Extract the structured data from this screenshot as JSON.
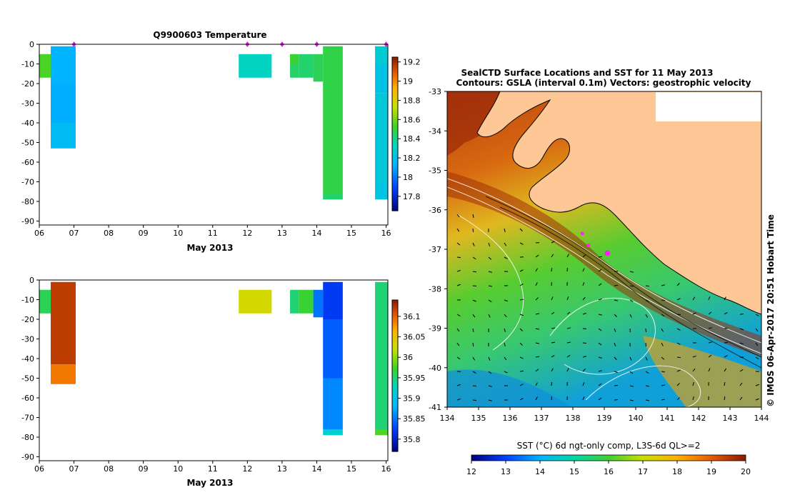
{
  "chart_data": [
    {
      "type": "heatmap",
      "title": "Q9900603  Temperature",
      "xlabel": "May 2013",
      "x_ticks": [
        "06",
        "07",
        "08",
        "09",
        "10",
        "11",
        "12",
        "13",
        "14",
        "15",
        "16"
      ],
      "y_ticks": [
        "0",
        "-10",
        "-20",
        "-30",
        "-40",
        "-50",
        "-60",
        "-70",
        "-80",
        "-90"
      ],
      "xlim": [
        6,
        16.05
      ],
      "ylim": [
        -92,
        0
      ],
      "colorbar": {
        "min": 17.65,
        "max": 19.25,
        "ticks": [
          "17.8",
          "18",
          "18.2",
          "18.4",
          "18.6",
          "18.8",
          "19",
          "19.2"
        ],
        "tick_values": [
          17.8,
          18.0,
          18.2,
          18.4,
          18.6,
          18.8,
          19.0,
          19.2
        ]
      },
      "profile_markers": [
        7.0,
        12.0,
        13.0,
        14.0,
        16.0
      ],
      "profiles": [
        {
          "x0": 6.0,
          "x1": 6.33,
          "cells": [
            [
              -5,
              -17,
              18.55
            ]
          ]
        },
        {
          "x0": 6.33,
          "x1": 7.05,
          "cells": [
            [
              -1,
              -20,
              18.13
            ],
            [
              -20,
              -40,
              18.12
            ],
            [
              -40,
              -53,
              18.17
            ]
          ]
        },
        {
          "x0": 11.75,
          "x1": 12.7,
          "cells": [
            [
              -5,
              -17,
              18.33
            ]
          ]
        },
        {
          "x0": 13.23,
          "x1": 13.48,
          "cells": [
            [
              -5,
              -10,
              18.52
            ],
            [
              -10,
              -17,
              18.45
            ]
          ]
        },
        {
          "x0": 13.48,
          "x1": 13.9,
          "cells": [
            [
              -5,
              -17,
              18.44
            ]
          ]
        },
        {
          "x0": 13.9,
          "x1": 14.18,
          "cells": [
            [
              -5,
              -19,
              18.47
            ]
          ]
        },
        {
          "x0": 14.18,
          "x1": 14.75,
          "cells": [
            [
              -1,
              -76,
              18.49
            ],
            [
              -76,
              -79,
              18.44
            ]
          ]
        },
        {
          "x0": 15.68,
          "x1": 16.05,
          "cells": [
            [
              -1,
              -10,
              18.28
            ],
            [
              -10,
              -25,
              18.22
            ],
            [
              -25,
              -70,
              18.26
            ],
            [
              -70,
              -79,
              18.23
            ]
          ]
        }
      ]
    },
    {
      "type": "heatmap",
      "xlabel": "May 2013",
      "x_ticks": [
        "06",
        "07",
        "08",
        "09",
        "10",
        "11",
        "12",
        "13",
        "14",
        "15",
        "16"
      ],
      "y_ticks": [
        "0",
        "-10",
        "-20",
        "-30",
        "-40",
        "-50",
        "-60",
        "-70",
        "-80",
        "-90"
      ],
      "xlim": [
        6,
        16.05
      ],
      "ylim": [
        -92,
        0
      ],
      "colorbar": {
        "min": 35.77,
        "max": 36.14,
        "ticks": [
          "35.8",
          "35.85",
          "35.9",
          "35.95",
          "36",
          "36.05",
          "36.1"
        ],
        "tick_values": [
          35.8,
          35.85,
          35.9,
          35.95,
          36.0,
          36.05,
          36.1
        ]
      },
      "profiles": [
        {
          "x0": 6.0,
          "x1": 6.33,
          "cells": [
            [
              -5,
              -17,
              35.96
            ]
          ]
        },
        {
          "x0": 6.33,
          "x1": 7.05,
          "cells": [
            [
              -1,
              -43,
              36.12
            ],
            [
              -43,
              -53,
              36.09
            ]
          ]
        },
        {
          "x0": 11.75,
          "x1": 12.7,
          "cells": [
            [
              -5,
              -17,
              36.03
            ]
          ]
        },
        {
          "x0": 13.23,
          "x1": 13.48,
          "cells": [
            [
              -5,
              -17,
              35.95
            ]
          ]
        },
        {
          "x0": 13.48,
          "x1": 13.9,
          "cells": [
            [
              -5,
              -17,
              35.97
            ]
          ]
        },
        {
          "x0": 13.9,
          "x1": 14.18,
          "cells": [
            [
              -5,
              -19,
              35.85
            ]
          ]
        },
        {
          "x0": 14.18,
          "x1": 14.75,
          "cells": [
            [
              -1,
              -20,
              35.82
            ],
            [
              -20,
              -50,
              35.84
            ],
            [
              -50,
              -76,
              35.86
            ],
            [
              -76,
              -79,
              35.92
            ]
          ]
        },
        {
          "x0": 15.68,
          "x1": 16.05,
          "cells": [
            [
              -1,
              -76,
              35.95
            ],
            [
              -76,
              -79,
              35.98
            ]
          ]
        }
      ]
    },
    {
      "type": "heatmap",
      "title": "SealCTD Surface Locations and SST for 11 May 2013",
      "subtitle": "Contours: GSLA (interval 0.1m) Vectors: geostrophic velocity",
      "x_ticks": [
        "134",
        "135",
        "136",
        "137",
        "138",
        "139",
        "140",
        "141",
        "142",
        "143",
        "144"
      ],
      "y_ticks": [
        "-33",
        "-34",
        "-35",
        "-36",
        "-37",
        "-38",
        "-39",
        "-40",
        "-41"
      ],
      "xlim": [
        134,
        144
      ],
      "ylim": [
        -41,
        -33
      ],
      "colorbar": {
        "label": "SST (°C) 6d ngt-only comp, L3S-6d QL>=2",
        "min": 12,
        "max": 20,
        "ticks": [
          "12",
          "13",
          "14",
          "15",
          "16",
          "17",
          "18",
          "19",
          "20"
        ]
      },
      "seal_locations": [
        [
          138.3,
          -36.6
        ],
        [
          138.5,
          -36.9
        ],
        [
          139.1,
          -37.1
        ]
      ],
      "credit": "© IMOS 06-Apr-2017 20:51 Hobart Time"
    }
  ]
}
